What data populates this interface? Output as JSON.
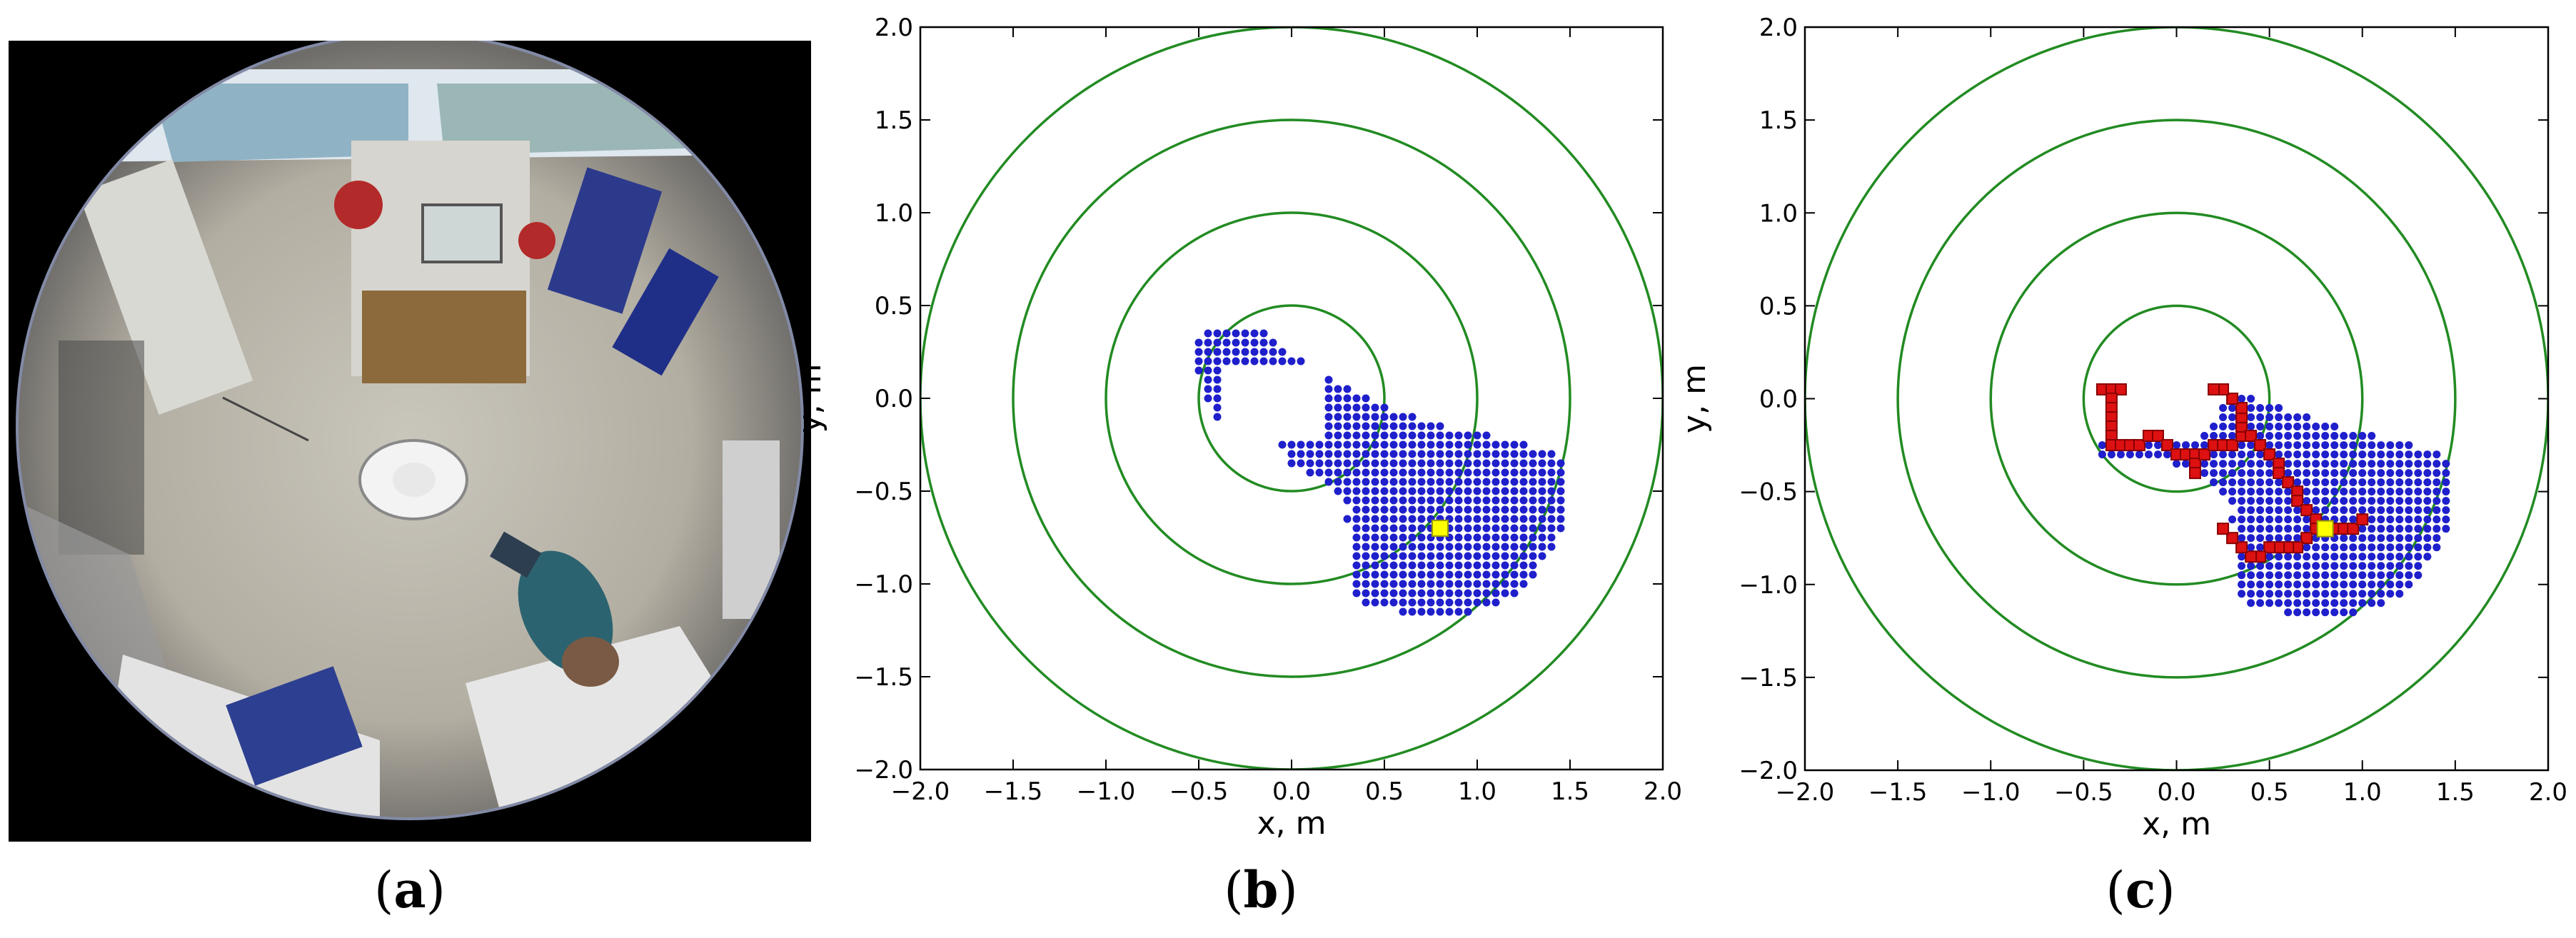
{
  "panels": {
    "a": {
      "label_open": "(",
      "letter": "a",
      "label_close": ")"
    },
    "b": {
      "label_open": "(",
      "letter": "b",
      "label_close": ")"
    },
    "c": {
      "label_open": "(",
      "letter": "c",
      "label_close": ")"
    }
  },
  "photo": {
    "description_icon": "fisheye-camera-photo"
  },
  "colors": {
    "rings": "#228B22",
    "cells": "#1f1fcc",
    "path": "#dd1111",
    "path_edge": "#880000",
    "goal": "#ffff00"
  },
  "chart_data": [
    {
      "panel": "b",
      "type": "scatter",
      "xlabel": "x, m",
      "ylabel": "y, m",
      "xlim": [
        -2.0,
        2.0
      ],
      "ylim": [
        -2.0,
        2.0
      ],
      "xticks": [
        "−2.0",
        "−1.5",
        "−1.0",
        "−0.5",
        "0.0",
        "0.5",
        "1.0",
        "1.5",
        "2.0"
      ],
      "yticks": [
        "2.0",
        "1.5",
        "1.0",
        "0.5",
        "0.0",
        "−0.5",
        "−1.0",
        "−1.5",
        "−2.0"
      ],
      "rings_radii": [
        0.5,
        1.0,
        1.5,
        2.0
      ],
      "reachable_cells_rows": [
        {
          "y": 0.35,
          "x0": -0.45,
          "x1": -0.15
        },
        {
          "y": 0.3,
          "x0": -0.5,
          "x1": -0.1
        },
        {
          "y": 0.25,
          "x0": -0.5,
          "x1": -0.05
        },
        {
          "y": 0.2,
          "x0": -0.5,
          "x1": 0.05
        },
        {
          "y": 0.15,
          "x0": -0.5,
          "x1": 0.1
        },
        {
          "y": 0.1,
          "x0": -0.45,
          "x1": 0.2
        },
        {
          "y": 0.05,
          "x0": -0.45,
          "x1": 0.3
        },
        {
          "y": 0.0,
          "x0": -0.45,
          "x1": 0.4
        },
        {
          "y": -0.05,
          "x0": -0.4,
          "x1": 0.5
        },
        {
          "y": -0.1,
          "x0": -0.4,
          "x1": 0.65
        },
        {
          "y": -0.15,
          "x0": -0.35,
          "x1": 0.8
        },
        {
          "y": -0.2,
          "x0": -0.35,
          "x1": 1.05
        },
        {
          "y": -0.25,
          "x0": -0.05,
          "x1": 1.25
        },
        {
          "y": -0.3,
          "x0": 0.0,
          "x1": 1.4
        },
        {
          "y": -0.35,
          "x0": 0.0,
          "x1": 1.45
        },
        {
          "y": -0.4,
          "x0": 0.1,
          "x1": 1.45
        },
        {
          "y": -0.45,
          "x0": 0.2,
          "x1": 1.45
        },
        {
          "y": -0.5,
          "x0": 0.25,
          "x1": 1.45
        },
        {
          "y": -0.55,
          "x0": 0.3,
          "x1": 1.45
        },
        {
          "y": -0.6,
          "x0": 0.35,
          "x1": 1.45
        },
        {
          "y": -0.65,
          "x0": 0.3,
          "x1": 1.45
        },
        {
          "y": -0.7,
          "x0": 0.35,
          "x1": 1.45
        },
        {
          "y": -0.75,
          "x0": 0.35,
          "x1": 1.4
        },
        {
          "y": -0.8,
          "x0": 0.35,
          "x1": 1.4
        },
        {
          "y": -0.85,
          "x0": 0.35,
          "x1": 1.35
        },
        {
          "y": -0.9,
          "x0": 0.35,
          "x1": 1.3
        },
        {
          "y": -0.95,
          "x0": 0.35,
          "x1": 1.3
        },
        {
          "y": -1.0,
          "x0": 0.35,
          "x1": 1.25
        },
        {
          "y": -1.05,
          "x0": 0.35,
          "x1": 1.2
        },
        {
          "y": -1.1,
          "x0": 0.4,
          "x1": 1.1
        },
        {
          "y": -1.15,
          "x0": 0.6,
          "x1": 0.95
        }
      ],
      "hole": {
        "x0": -0.4,
        "x1": 0.2,
        "y0": -0.25,
        "y1": 0.2
      },
      "goal": {
        "x": 0.8,
        "y": -0.7
      }
    },
    {
      "panel": "c",
      "type": "scatter",
      "xlabel": "x, m",
      "ylabel": "y, m",
      "xlim": [
        -2.0,
        2.0
      ],
      "ylim": [
        -2.0,
        2.0
      ],
      "xticks": [
        "−2.0",
        "−1.5",
        "−1.0",
        "−0.5",
        "0.0",
        "0.5",
        "1.0",
        "1.5",
        "2.0"
      ],
      "yticks": [
        "2.0",
        "1.5",
        "1.0",
        "0.5",
        "0.0",
        "−0.5",
        "−1.0",
        "−1.5",
        "−2.0"
      ],
      "rings_radii": [
        0.5,
        1.0,
        1.5,
        2.0
      ],
      "reachable_cells_rows": [
        {
          "y": 0.0,
          "x0": 0.3,
          "x1": 0.4
        },
        {
          "y": -0.05,
          "x0": 0.25,
          "x1": 0.55
        },
        {
          "y": -0.1,
          "x0": 0.25,
          "x1": 0.7
        },
        {
          "y": -0.15,
          "x0": 0.2,
          "x1": 0.85
        },
        {
          "y": -0.2,
          "x0": 0.15,
          "x1": 1.05
        },
        {
          "y": -0.25,
          "x0": -0.4,
          "x1": 1.25
        },
        {
          "y": -0.3,
          "x0": -0.4,
          "x1": 1.4
        },
        {
          "y": -0.35,
          "x0": 0.0,
          "x1": 1.45
        },
        {
          "y": -0.4,
          "x0": 0.1,
          "x1": 1.45
        },
        {
          "y": -0.45,
          "x0": 0.2,
          "x1": 1.45
        },
        {
          "y": -0.5,
          "x0": 0.25,
          "x1": 1.45
        },
        {
          "y": -0.55,
          "x0": 0.3,
          "x1": 1.45
        },
        {
          "y": -0.6,
          "x0": 0.35,
          "x1": 1.45
        },
        {
          "y": -0.65,
          "x0": 0.3,
          "x1": 1.45
        },
        {
          "y": -0.7,
          "x0": 0.35,
          "x1": 1.45
        },
        {
          "y": -0.75,
          "x0": 0.35,
          "x1": 1.4
        },
        {
          "y": -0.8,
          "x0": 0.35,
          "x1": 1.4
        },
        {
          "y": -0.85,
          "x0": 0.35,
          "x1": 1.35
        },
        {
          "y": -0.9,
          "x0": 0.35,
          "x1": 1.3
        },
        {
          "y": -0.95,
          "x0": 0.35,
          "x1": 1.3
        },
        {
          "y": -1.0,
          "x0": 0.35,
          "x1": 1.25
        },
        {
          "y": -1.05,
          "x0": 0.35,
          "x1": 1.2
        },
        {
          "y": -1.1,
          "x0": 0.4,
          "x1": 1.1
        },
        {
          "y": -1.15,
          "x0": 0.6,
          "x1": 0.95
        }
      ],
      "path": [
        [
          -0.4,
          0.05
        ],
        [
          -0.35,
          0.05
        ],
        [
          -0.3,
          0.05
        ],
        [
          -0.35,
          0.0
        ],
        [
          -0.35,
          -0.05
        ],
        [
          -0.35,
          -0.1
        ],
        [
          -0.35,
          -0.15
        ],
        [
          -0.35,
          -0.2
        ],
        [
          -0.35,
          -0.25
        ],
        [
          -0.3,
          -0.25
        ],
        [
          -0.25,
          -0.25
        ],
        [
          -0.2,
          -0.25
        ],
        [
          -0.15,
          -0.2
        ],
        [
          -0.1,
          -0.2
        ],
        [
          -0.05,
          -0.25
        ],
        [
          0.0,
          -0.3
        ],
        [
          0.05,
          -0.3
        ],
        [
          0.1,
          -0.3
        ],
        [
          0.1,
          -0.35
        ],
        [
          0.1,
          -0.4
        ],
        [
          0.15,
          -0.3
        ],
        [
          0.2,
          -0.25
        ],
        [
          0.25,
          -0.25
        ],
        [
          0.3,
          -0.25
        ],
        [
          0.35,
          -0.2
        ],
        [
          0.35,
          -0.15
        ],
        [
          0.35,
          -0.1
        ],
        [
          0.35,
          -0.05
        ],
        [
          0.3,
          0.0
        ],
        [
          0.25,
          0.05
        ],
        [
          0.2,
          0.05
        ],
        [
          0.4,
          -0.2
        ],
        [
          0.45,
          -0.25
        ],
        [
          0.5,
          -0.3
        ],
        [
          0.55,
          -0.35
        ],
        [
          0.55,
          -0.4
        ],
        [
          0.6,
          -0.45
        ],
        [
          0.65,
          -0.5
        ],
        [
          0.65,
          -0.55
        ],
        [
          0.7,
          -0.6
        ],
        [
          0.75,
          -0.65
        ],
        [
          0.75,
          -0.7
        ],
        [
          0.7,
          -0.75
        ],
        [
          0.65,
          -0.8
        ],
        [
          0.6,
          -0.8
        ],
        [
          0.55,
          -0.8
        ],
        [
          0.5,
          -0.8
        ],
        [
          0.45,
          -0.85
        ],
        [
          0.4,
          -0.85
        ],
        [
          0.35,
          -0.8
        ],
        [
          0.3,
          -0.75
        ],
        [
          0.25,
          -0.7
        ],
        [
          0.8,
          -0.7
        ],
        [
          0.85,
          -0.7
        ],
        [
          0.9,
          -0.7
        ],
        [
          0.95,
          -0.7
        ],
        [
          1.0,
          -0.65
        ]
      ],
      "goal": {
        "x": 0.8,
        "y": -0.7
      }
    }
  ]
}
